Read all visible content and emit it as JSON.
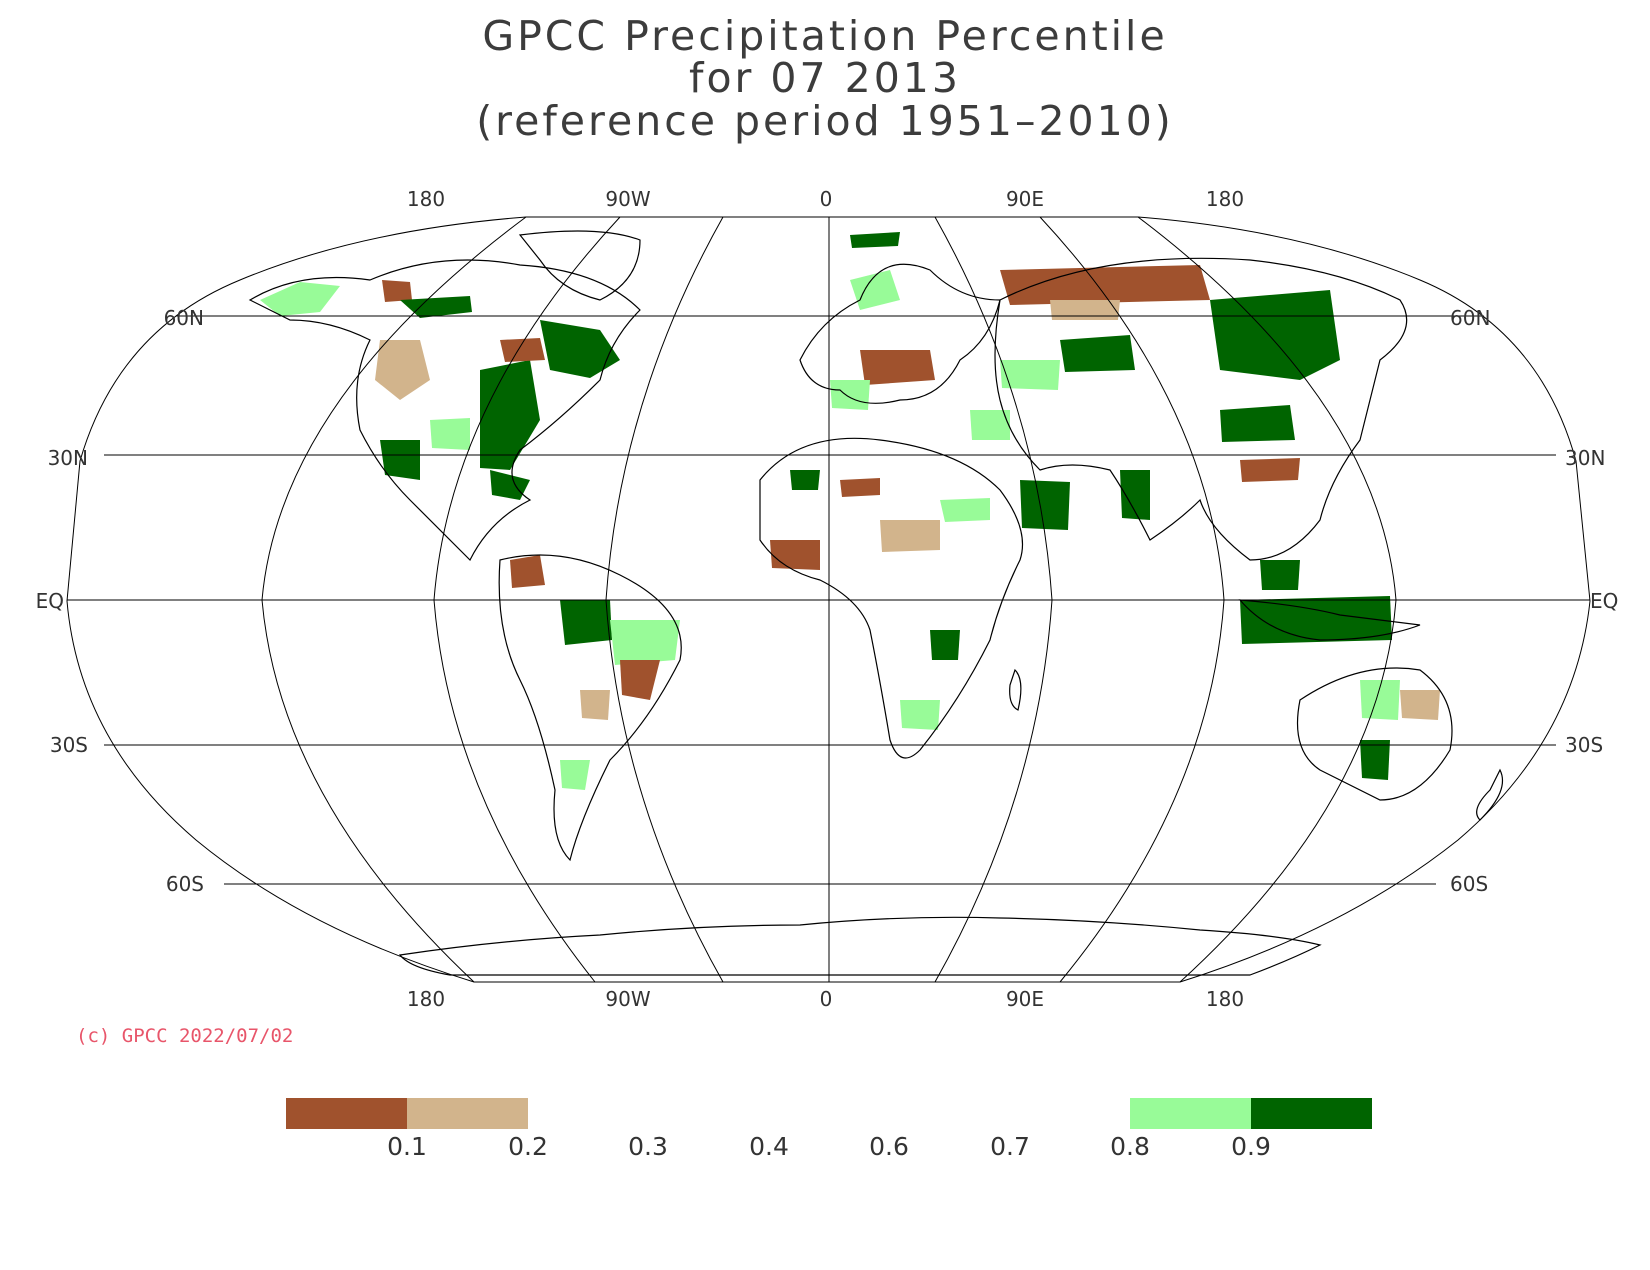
{
  "title": {
    "line1": "GPCC Precipitation Percentile",
    "line2": "for 07 2013",
    "line3": "(reference period 1951–2010)"
  },
  "map": {
    "projection": "Robinson",
    "top_lon_labels": [
      "180",
      "90W",
      "0",
      "90E",
      "180"
    ],
    "bottom_lon_labels": [
      "180",
      "90W",
      "0",
      "90E",
      "180"
    ],
    "left_lat_labels": [
      "60N",
      "30N",
      "EQ",
      "30S",
      "60S"
    ],
    "right_lat_labels": [
      "60N",
      "30N",
      "EQ",
      "30S",
      "60S"
    ]
  },
  "copyright": "(c) GPCC 2022/07/02",
  "legend": {
    "ticks": [
      "0.1",
      "0.2",
      "0.3",
      "0.4",
      "0.6",
      "0.7",
      "0.8",
      "0.9"
    ],
    "colors": {
      "below_0.1": "#a0522d",
      "0.1_to_0.2": "#d2b48c",
      "0.8_to_0.9": "#98fb98",
      "above_0.9": "#006400"
    }
  },
  "colors": {
    "dry_strong": "#a0522d",
    "dry": "#d2b48c",
    "wet": "#98fb98",
    "wet_strong": "#006400",
    "grid": "#000000"
  }
}
